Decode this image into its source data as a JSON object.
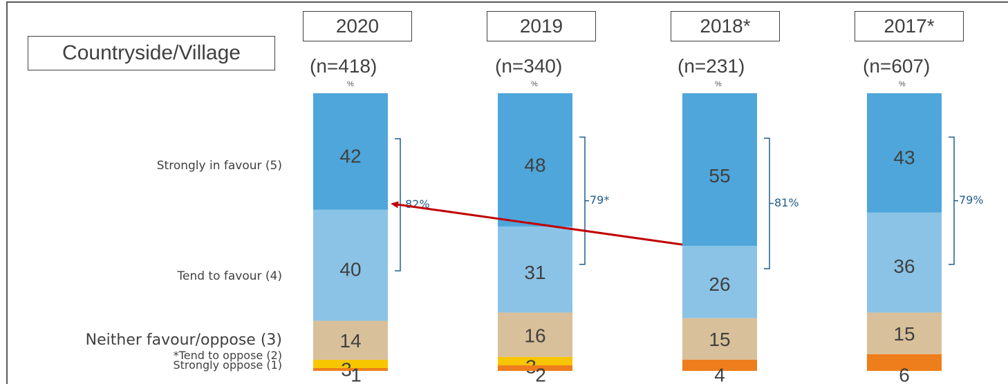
{
  "title": "Countryside/Village",
  "chart_data": {
    "type": "bar",
    "stacked": true,
    "categories": [
      "2020",
      "2019",
      "2018*",
      "2017*"
    ],
    "sample_sizes": [
      "(n=418)",
      "(n=340)",
      "(n=231)",
      "(n=607)"
    ],
    "unit_label": "%",
    "series": [
      {
        "name": "Strongly in favour (5)",
        "values": [
          42,
          48,
          55,
          43
        ],
        "color": "#4ea6da"
      },
      {
        "name": "Tend to favour (4)",
        "values": [
          40,
          31,
          26,
          36
        ],
        "color": "#8bc3e6"
      },
      {
        "name": "Neither favour/oppose (3)",
        "values": [
          14,
          16,
          15,
          15
        ],
        "color": "#d8c09a"
      },
      {
        "name": "*Tend to oppose (2)",
        "values": [
          3,
          3,
          null,
          null
        ],
        "color": "#f7c600"
      },
      {
        "name": "Strongly oppose (1)",
        "values": [
          1,
          2,
          4,
          6
        ],
        "color": "#ee7d1b"
      }
    ],
    "favour_totals": [
      "82%",
      "79*",
      "81%",
      "79%"
    ],
    "data_labels": {
      "strongly_in_favour": [
        "42",
        "48",
        "55",
        "43"
      ],
      "tend_to_favour": [
        "40",
        "31",
        "26",
        "36"
      ],
      "neither": [
        "14",
        "16",
        "15",
        "15"
      ],
      "tend_to_oppose": [
        "3",
        "3",
        "",
        ""
      ],
      "strongly_oppose": [
        "1",
        "2",
        "4",
        "6"
      ]
    },
    "trend_arrow_color": "#c00000",
    "bracket_color": "#1f5c8b"
  }
}
